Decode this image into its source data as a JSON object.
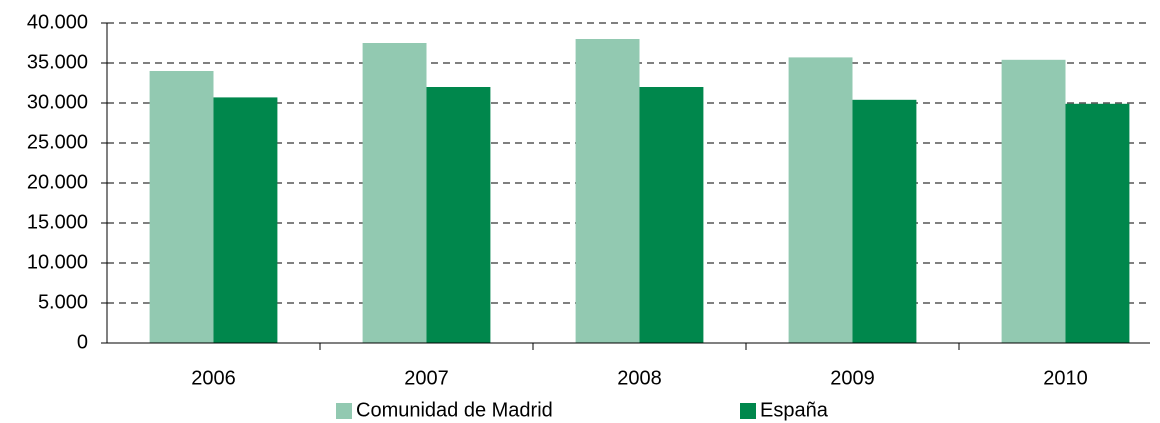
{
  "chart_data": {
    "type": "bar",
    "categories": [
      "2006",
      "2007",
      "2008",
      "2009",
      "2010"
    ],
    "series": [
      {
        "name": "Comunidad de Madrid",
        "color": "#92c9b1",
        "values": [
          34000,
          37500,
          38000,
          35700,
          35400
        ]
      },
      {
        "name": "España",
        "color": "#00874c",
        "values": [
          30700,
          32000,
          32000,
          30400,
          29900
        ]
      }
    ],
    "ylim": [
      0,
      40000
    ],
    "yticks": [
      0,
      {
        "value": 5000,
        "label": "5.000"
      },
      {
        "value": 10000,
        "label": "10.000"
      },
      {
        "value": 15000,
        "label": "15.000"
      },
      {
        "value": 20000,
        "label": "20.000"
      },
      {
        "value": 25000,
        "label": "25.000"
      },
      {
        "value": 30000,
        "label": "30.000"
      },
      {
        "value": 35000,
        "label": "35.000"
      },
      {
        "value": 40000,
        "label": "40.000"
      }
    ],
    "grid": true,
    "legend": "bottom"
  }
}
